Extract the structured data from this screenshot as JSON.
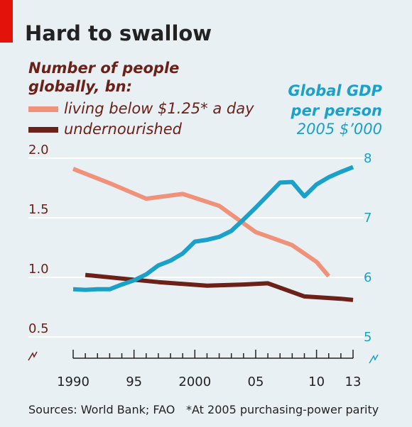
{
  "title": "Hard to swallow",
  "legend": {
    "heading_line1": "Number of people",
    "heading_line2": "globally, bn:",
    "items": [
      {
        "label": "living below $1.25* a day",
        "color": "#f0917a"
      },
      {
        "label": "undernourished",
        "color": "#6b2118"
      }
    ]
  },
  "right_axis": {
    "heading_line1": "Global GDP",
    "heading_line2": "per person",
    "unit": "2005 $’000"
  },
  "source": "Sources: World Bank; FAO",
  "footnote": "*At 2005 purchasing-power parity",
  "colors": {
    "poverty": "#f0917a",
    "undernourished": "#6b2118",
    "gdp": "#1aa0c9",
    "grid": "#ffffff"
  },
  "chart_data": {
    "type": "line",
    "x_ticks": [
      "1990",
      "95",
      "2000",
      "05",
      "10",
      "13"
    ],
    "x_tick_values": [
      1990,
      1995,
      2000,
      2005,
      2010,
      2013
    ],
    "xlim": [
      1990,
      2013
    ],
    "y_left": {
      "ticks": [
        "0.5",
        "1.0",
        "1.5",
        "2.0"
      ],
      "tick_values": [
        0.5,
        1.0,
        1.5,
        2.0
      ],
      "lim": [
        0.5,
        2.0
      ]
    },
    "y_right": {
      "ticks": [
        "5",
        "6",
        "7",
        "8"
      ],
      "tick_values": [
        5,
        6,
        7,
        8
      ],
      "lim": [
        5,
        8
      ]
    },
    "series": [
      {
        "name": "living below $1.25* a day",
        "axis": "left",
        "color": "#f0917a",
        "points": [
          [
            1990,
            1.91
          ],
          [
            1993,
            1.79
          ],
          [
            1996,
            1.66
          ],
          [
            1999,
            1.7
          ],
          [
            2002,
            1.6
          ],
          [
            2005,
            1.38
          ],
          [
            2008,
            1.27
          ],
          [
            2010,
            1.13
          ],
          [
            2011,
            1.01
          ]
        ]
      },
      {
        "name": "undernourished",
        "axis": "left",
        "color": "#6b2118",
        "points": [
          [
            1991,
            1.02
          ],
          [
            1994,
            0.99
          ],
          [
            1997,
            0.96
          ],
          [
            2001,
            0.93
          ],
          [
            2004,
            0.94
          ],
          [
            2006,
            0.95
          ],
          [
            2009,
            0.84
          ],
          [
            2012,
            0.82
          ],
          [
            2013,
            0.81
          ]
        ]
      },
      {
        "name": "Global GDP per person",
        "axis": "right",
        "color": "#1aa0c9",
        "points": [
          [
            1990,
            5.8
          ],
          [
            1991,
            5.79
          ],
          [
            1992,
            5.8
          ],
          [
            1993,
            5.8
          ],
          [
            1994,
            5.88
          ],
          [
            1995,
            5.95
          ],
          [
            1996,
            6.05
          ],
          [
            1997,
            6.2
          ],
          [
            1998,
            6.28
          ],
          [
            1999,
            6.4
          ],
          [
            2000,
            6.6
          ],
          [
            2001,
            6.63
          ],
          [
            2002,
            6.68
          ],
          [
            2003,
            6.78
          ],
          [
            2004,
            6.97
          ],
          [
            2005,
            7.17
          ],
          [
            2006,
            7.38
          ],
          [
            2007,
            7.59
          ],
          [
            2008,
            7.6
          ],
          [
            2009,
            7.36
          ],
          [
            2010,
            7.56
          ],
          [
            2011,
            7.68
          ],
          [
            2012,
            7.77
          ],
          [
            2013,
            7.85
          ]
        ]
      }
    ]
  }
}
